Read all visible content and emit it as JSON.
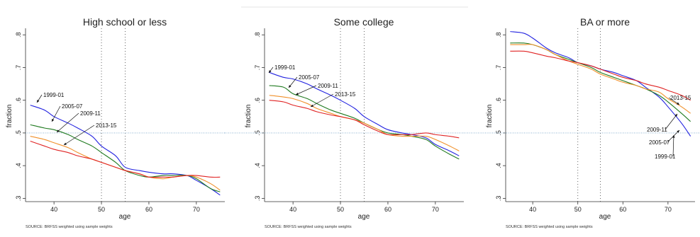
{
  "chart_data": [
    {
      "type": "line",
      "title": "High school or less",
      "xlabel": "age",
      "ylabel": "fraction",
      "xlim": [
        34,
        76
      ],
      "ylim": [
        0.29,
        0.82
      ],
      "x_ticks": [
        40,
        50,
        60,
        70
      ],
      "y_ticks": [
        0.3,
        0.4,
        0.5,
        0.6,
        0.7,
        0.8
      ],
      "y_tick_labels": [
        ".3",
        ".4",
        ".5",
        ".6",
        ".7",
        ".8"
      ],
      "x_tick_labels": [
        "40",
        "50",
        "60",
        "70"
      ],
      "vertical_reference_lines": [
        50,
        55
      ],
      "horizontal_reference_line": 0.5,
      "series": [
        {
          "name": "1999-01",
          "color": "#2323e0",
          "x": [
            35,
            38,
            40,
            43,
            45,
            48,
            50,
            53,
            55,
            58,
            60,
            63,
            65,
            68,
            70,
            73,
            75
          ],
          "y": [
            0.585,
            0.57,
            0.55,
            0.53,
            0.515,
            0.49,
            0.46,
            0.43,
            0.395,
            0.385,
            0.38,
            0.375,
            0.375,
            0.37,
            0.355,
            0.33,
            0.31
          ]
        },
        {
          "name": "2005-07",
          "color": "#1f7a1f",
          "x": [
            35,
            38,
            40,
            43,
            45,
            48,
            50,
            53,
            55,
            58,
            60,
            63,
            65,
            68,
            70,
            73,
            75
          ],
          "y": [
            0.525,
            0.515,
            0.51,
            0.495,
            0.48,
            0.46,
            0.44,
            0.41,
            0.385,
            0.37,
            0.365,
            0.37,
            0.37,
            0.37,
            0.36,
            0.33,
            0.32
          ]
        },
        {
          "name": "2009-11",
          "color": "#f0902a",
          "x": [
            35,
            38,
            40,
            43,
            45,
            48,
            50,
            53,
            55,
            58,
            60,
            63,
            65,
            68,
            70,
            73,
            75
          ],
          "y": [
            0.49,
            0.48,
            0.47,
            0.455,
            0.44,
            0.42,
            0.41,
            0.395,
            0.385,
            0.375,
            0.365,
            0.36,
            0.365,
            0.37,
            0.365,
            0.345,
            0.325
          ]
        },
        {
          "name": "2013-15",
          "color": "#e02323",
          "x": [
            35,
            38,
            40,
            43,
            45,
            48,
            50,
            53,
            55,
            58,
            60,
            63,
            65,
            68,
            70,
            73,
            75
          ],
          "y": [
            0.475,
            0.46,
            0.45,
            0.44,
            0.43,
            0.42,
            0.41,
            0.395,
            0.385,
            0.375,
            0.365,
            0.365,
            0.365,
            0.37,
            0.37,
            0.365,
            0.365
          ]
        }
      ],
      "series_labels": [
        "1999-01",
        "2005-07",
        "2009-11",
        "2013-15"
      ],
      "source": "SOURCE: BRFSS weighted using sample weights"
    },
    {
      "type": "line",
      "title": "Some college",
      "xlabel": "age",
      "ylabel": "fraction",
      "xlim": [
        34,
        76
      ],
      "ylim": [
        0.29,
        0.82
      ],
      "x_ticks": [
        40,
        50,
        60,
        70
      ],
      "y_ticks": [
        0.3,
        0.4,
        0.5,
        0.6,
        0.7,
        0.8
      ],
      "y_tick_labels": [
        ".3",
        ".4",
        ".5",
        ".6",
        ".7",
        ".8"
      ],
      "x_tick_labels": [
        "40",
        "50",
        "60",
        "70"
      ],
      "vertical_reference_lines": [
        50,
        55
      ],
      "horizontal_reference_line": 0.5,
      "series": [
        {
          "name": "1999-01",
          "color": "#2323e0",
          "x": [
            35,
            38,
            40,
            43,
            45,
            48,
            50,
            53,
            55,
            58,
            60,
            63,
            65,
            68,
            70,
            73,
            75
          ],
          "y": [
            0.685,
            0.67,
            0.665,
            0.65,
            0.635,
            0.615,
            0.6,
            0.575,
            0.55,
            0.525,
            0.51,
            0.5,
            0.495,
            0.485,
            0.465,
            0.445,
            0.43
          ]
        },
        {
          "name": "2005-07",
          "color": "#1f7a1f",
          "x": [
            35,
            38,
            40,
            43,
            45,
            48,
            50,
            53,
            55,
            58,
            60,
            63,
            65,
            68,
            70,
            73,
            75
          ],
          "y": [
            0.645,
            0.64,
            0.62,
            0.605,
            0.59,
            0.57,
            0.56,
            0.545,
            0.53,
            0.51,
            0.5,
            0.495,
            0.49,
            0.48,
            0.46,
            0.435,
            0.42
          ]
        },
        {
          "name": "2009-11",
          "color": "#f0902a",
          "x": [
            35,
            38,
            40,
            43,
            45,
            48,
            50,
            53,
            55,
            58,
            60,
            63,
            65,
            68,
            70,
            73,
            75
          ],
          "y": [
            0.615,
            0.61,
            0.605,
            0.59,
            0.575,
            0.56,
            0.55,
            0.54,
            0.53,
            0.51,
            0.495,
            0.49,
            0.49,
            0.49,
            0.48,
            0.46,
            0.445
          ]
        },
        {
          "name": "2013-15",
          "color": "#e02323",
          "x": [
            35,
            38,
            40,
            43,
            45,
            48,
            50,
            53,
            55,
            58,
            60,
            63,
            65,
            68,
            70,
            73,
            75
          ],
          "y": [
            0.6,
            0.595,
            0.585,
            0.575,
            0.565,
            0.555,
            0.55,
            0.54,
            0.525,
            0.505,
            0.495,
            0.495,
            0.495,
            0.5,
            0.495,
            0.49,
            0.485
          ]
        }
      ],
      "series_labels": [
        "1999-01",
        "2005-07",
        "2009-11",
        "2013-15"
      ],
      "source": "SOURCE: BRFSS weighted using sample weights"
    },
    {
      "type": "line",
      "title": "BA or more",
      "xlabel": "age",
      "ylabel": "fraction",
      "xlim": [
        34,
        76
      ],
      "ylim": [
        0.29,
        0.82
      ],
      "x_ticks": [
        40,
        50,
        60,
        70
      ],
      "y_ticks": [
        0.3,
        0.4,
        0.5,
        0.6,
        0.7,
        0.8
      ],
      "y_tick_labels": [
        ".3",
        ".4",
        ".5",
        ".6",
        ".7",
        ".8"
      ],
      "x_tick_labels": [
        "40",
        "50",
        "60",
        "70"
      ],
      "vertical_reference_lines": [
        50,
        55
      ],
      "horizontal_reference_line": 0.5,
      "series": [
        {
          "name": "1999-01",
          "color": "#2323e0",
          "x": [
            35,
            38,
            40,
            43,
            45,
            48,
            50,
            53,
            55,
            58,
            60,
            63,
            65,
            68,
            70,
            73,
            75
          ],
          "y": [
            0.81,
            0.805,
            0.79,
            0.76,
            0.745,
            0.73,
            0.715,
            0.705,
            0.695,
            0.685,
            0.675,
            0.66,
            0.64,
            0.61,
            0.58,
            0.53,
            0.49
          ]
        },
        {
          "name": "2005-07",
          "color": "#1f7a1f",
          "x": [
            35,
            38,
            40,
            43,
            45,
            48,
            50,
            53,
            55,
            58,
            60,
            63,
            65,
            68,
            70,
            73,
            75
          ],
          "y": [
            0.775,
            0.775,
            0.77,
            0.755,
            0.74,
            0.725,
            0.715,
            0.7,
            0.685,
            0.67,
            0.66,
            0.645,
            0.635,
            0.615,
            0.595,
            0.56,
            0.535
          ]
        },
        {
          "name": "2009-11",
          "color": "#f0902a",
          "x": [
            35,
            38,
            40,
            43,
            45,
            48,
            50,
            53,
            55,
            58,
            60,
            63,
            65,
            68,
            70,
            73,
            75
          ],
          "y": [
            0.77,
            0.77,
            0.77,
            0.755,
            0.74,
            0.72,
            0.71,
            0.695,
            0.68,
            0.665,
            0.655,
            0.645,
            0.635,
            0.625,
            0.605,
            0.58,
            0.56
          ]
        },
        {
          "name": "2013-15",
          "color": "#e02323",
          "x": [
            35,
            38,
            40,
            43,
            45,
            48,
            50,
            53,
            55,
            58,
            60,
            63,
            65,
            68,
            70,
            73,
            75
          ],
          "y": [
            0.75,
            0.75,
            0.745,
            0.735,
            0.73,
            0.72,
            0.715,
            0.705,
            0.695,
            0.68,
            0.67,
            0.66,
            0.65,
            0.64,
            0.63,
            0.615,
            0.6
          ]
        }
      ],
      "series_labels": [
        "2013-15",
        "2009-11",
        "2005-07",
        "1999-01"
      ],
      "source": "SOURCE: BRFSS weighted using sample weights"
    }
  ]
}
